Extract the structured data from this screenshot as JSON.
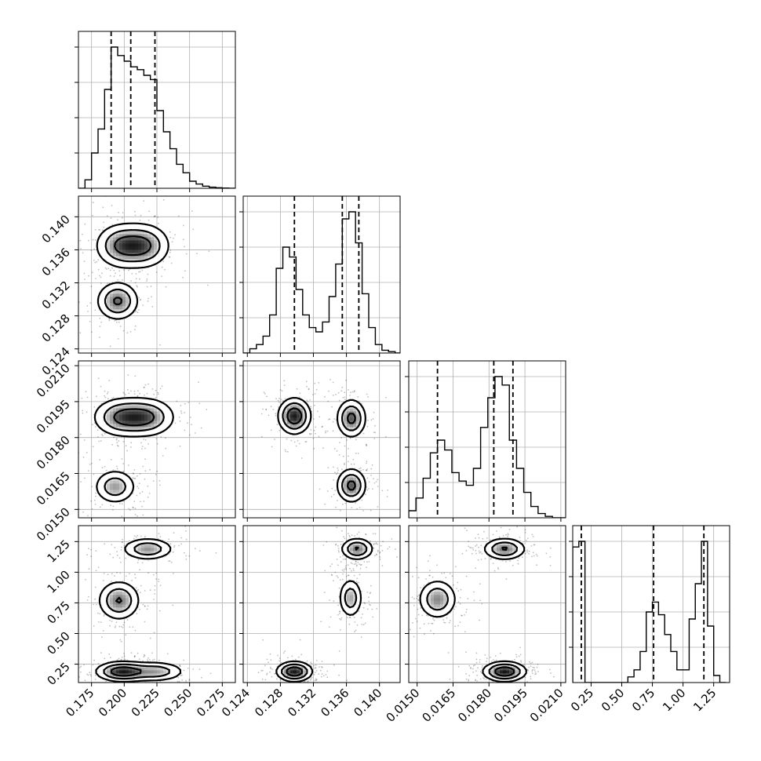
{
  "chart_data": {
    "type": "corner",
    "title": "",
    "parameters": [
      {
        "index": 0,
        "range": [
          0.165,
          0.285
        ],
        "ticks": [
          {
            "value": 0.175,
            "label": "0.175"
          },
          {
            "value": 0.2,
            "label": "0.200"
          },
          {
            "value": 0.225,
            "label": "0.225"
          },
          {
            "value": 0.25,
            "label": "0.250"
          },
          {
            "value": 0.275,
            "label": "0.275"
          }
        ],
        "quantiles": [
          0.19,
          0.205,
          0.2235
        ],
        "histogram": {
          "edges": [
            0.165,
            0.17,
            0.175,
            0.18,
            0.185,
            0.19,
            0.195,
            0.2,
            0.205,
            0.21,
            0.215,
            0.22,
            0.225,
            0.23,
            0.235,
            0.24,
            0.245,
            0.25,
            0.255,
            0.26,
            0.265,
            0.27,
            0.275,
            0.28,
            0.285
          ],
          "counts": [
            0.0,
            0.06,
            0.25,
            0.42,
            0.7,
            1.0,
            0.94,
            0.9,
            0.86,
            0.84,
            0.8,
            0.77,
            0.55,
            0.4,
            0.28,
            0.17,
            0.11,
            0.05,
            0.03,
            0.015,
            0.008,
            0.004,
            0.002,
            0.0
          ]
        }
      },
      {
        "index": 1,
        "range": [
          0.1235,
          0.1425
        ],
        "ticks": [
          {
            "value": 0.124,
            "label": "0.124"
          },
          {
            "value": 0.128,
            "label": "0.128"
          },
          {
            "value": 0.132,
            "label": "0.132"
          },
          {
            "value": 0.136,
            "label": "0.136"
          },
          {
            "value": 0.14,
            "label": "0.140"
          }
        ],
        "quantiles": [
          0.1297,
          0.1355,
          0.1375
        ],
        "histogram": {
          "edges": [
            0.1235,
            0.1243,
            0.1251,
            0.1259,
            0.1267,
            0.1275,
            0.1283,
            0.1291,
            0.1299,
            0.1307,
            0.1315,
            0.1323,
            0.1331,
            0.1339,
            0.1347,
            0.1355,
            0.1363,
            0.1371,
            0.1379,
            0.1387,
            0.1395,
            0.1403,
            0.1411,
            0.1419,
            0.1425
          ],
          "counts": [
            0.0,
            0.03,
            0.06,
            0.12,
            0.27,
            0.6,
            0.75,
            0.68,
            0.45,
            0.27,
            0.18,
            0.15,
            0.22,
            0.4,
            0.63,
            0.95,
            1.0,
            0.78,
            0.42,
            0.18,
            0.06,
            0.02,
            0.01,
            0.0
          ]
        }
      },
      {
        "index": 2,
        "range": [
          0.01465,
          0.0212
        ],
        "ticks": [
          {
            "value": 0.015,
            "label": "0.0150"
          },
          {
            "value": 0.0165,
            "label": "0.0165"
          },
          {
            "value": 0.018,
            "label": "0.0180"
          },
          {
            "value": 0.0195,
            "label": "0.0195"
          },
          {
            "value": 0.021,
            "label": "0.0210"
          }
        ],
        "quantiles": [
          0.01585,
          0.0182,
          0.019
        ],
        "histogram": {
          "edges": [
            0.01465,
            0.01495,
            0.01525,
            0.01555,
            0.01585,
            0.01615,
            0.01645,
            0.01675,
            0.01705,
            0.01735,
            0.01765,
            0.01795,
            0.01825,
            0.01855,
            0.01885,
            0.01915,
            0.01945,
            0.01975,
            0.02005,
            0.02035,
            0.02065,
            0.02095,
            0.0212
          ],
          "counts": [
            0.05,
            0.14,
            0.28,
            0.46,
            0.55,
            0.48,
            0.32,
            0.26,
            0.23,
            0.35,
            0.64,
            0.85,
            1.0,
            0.94,
            0.55,
            0.35,
            0.18,
            0.08,
            0.03,
            0.01,
            0.0,
            0.0
          ]
        }
      },
      {
        "index": 3,
        "range": [
          0.1,
          1.38
        ],
        "ticks": [
          {
            "value": 0.25,
            "label": "0.25"
          },
          {
            "value": 0.5,
            "label": "0.50"
          },
          {
            "value": 0.75,
            "label": "0.75"
          },
          {
            "value": 1.0,
            "label": "1.00"
          },
          {
            "value": 1.25,
            "label": "1.25"
          }
        ],
        "quantiles": [
          0.17,
          0.76,
          1.17
        ],
        "histogram": {
          "edges": [
            0.1,
            0.15,
            0.2,
            0.25,
            0.3,
            0.35,
            0.4,
            0.45,
            0.5,
            0.55,
            0.6,
            0.65,
            0.7,
            0.75,
            0.8,
            0.85,
            0.9,
            0.95,
            1.0,
            1.05,
            1.1,
            1.15,
            1.2,
            1.25,
            1.3,
            1.35
          ],
          "counts": [
            0.96,
            1.0,
            0.0,
            0.0,
            0.0,
            0.0,
            0.0,
            0.0,
            0.0,
            0.04,
            0.09,
            0.22,
            0.5,
            0.57,
            0.48,
            0.34,
            0.22,
            0.09,
            0.09,
            0.45,
            0.7,
            1.0,
            0.4,
            0.05,
            0.0
          ]
        }
      }
    ],
    "pairs": [
      {
        "row": 1,
        "col": 0,
        "modes": [
          {
            "x": 0.197,
            "y": 0.1365,
            "sx": 0.011,
            "sy": 0.0015,
            "w": 0.5
          },
          {
            "x": 0.216,
            "y": 0.1365,
            "sx": 0.011,
            "sy": 0.0015,
            "w": 0.5
          },
          {
            "x": 0.195,
            "y": 0.1298,
            "sx": 0.009,
            "sy": 0.0013,
            "w": 0.55
          }
        ]
      },
      {
        "row": 2,
        "col": 0,
        "modes": [
          {
            "x": 0.197,
            "y": 0.01885,
            "sx": 0.012,
            "sy": 0.00045,
            "w": 0.55
          },
          {
            "x": 0.218,
            "y": 0.01885,
            "sx": 0.012,
            "sy": 0.00045,
            "w": 0.55
          },
          {
            "x": 0.193,
            "y": 0.01595,
            "sx": 0.009,
            "sy": 0.0004,
            "w": 0.5
          }
        ]
      },
      {
        "row": 2,
        "col": 1,
        "modes": [
          {
            "x": 0.1297,
            "y": 0.0189,
            "sx": 0.0011,
            "sy": 0.00042,
            "w": 0.6
          },
          {
            "x": 0.1366,
            "y": 0.0188,
            "sx": 0.001,
            "sy": 0.00045,
            "w": 0.5
          },
          {
            "x": 0.1366,
            "y": 0.016,
            "sx": 0.001,
            "sy": 0.0004,
            "w": 0.5
          }
        ]
      },
      {
        "row": 3,
        "col": 0,
        "modes": [
          {
            "x": 0.218,
            "y": 1.19,
            "sx": 0.011,
            "sy": 0.05,
            "w": 0.5
          },
          {
            "x": 0.196,
            "y": 0.77,
            "sx": 0.009,
            "sy": 0.09,
            "w": 0.55
          },
          {
            "x": 0.198,
            "y": 0.19,
            "sx": 0.011,
            "sy": 0.045,
            "w": 0.7
          },
          {
            "x": 0.225,
            "y": 0.19,
            "sx": 0.012,
            "sy": 0.045,
            "w": 0.45
          }
        ]
      },
      {
        "row": 3,
        "col": 1,
        "modes": [
          {
            "x": 0.1373,
            "y": 1.19,
            "sx": 0.0011,
            "sy": 0.05,
            "w": 0.6
          },
          {
            "x": 0.1365,
            "y": 0.79,
            "sx": 0.0008,
            "sy": 0.09,
            "w": 0.5
          },
          {
            "x": 0.1297,
            "y": 0.19,
            "sx": 0.0012,
            "sy": 0.045,
            "w": 0.8
          }
        ]
      },
      {
        "row": 3,
        "col": 2,
        "modes": [
          {
            "x": 0.01865,
            "y": 1.19,
            "sx": 0.0005,
            "sy": 0.05,
            "w": 0.6
          },
          {
            "x": 0.01585,
            "y": 0.78,
            "sx": 0.00045,
            "sy": 0.09,
            "w": 0.55
          },
          {
            "x": 0.01865,
            "y": 0.19,
            "sx": 0.0005,
            "sy": 0.045,
            "w": 0.8
          }
        ]
      }
    ],
    "contour_levels": [
      0.2,
      0.45,
      0.75
    ],
    "grid": true,
    "legend": "none"
  }
}
